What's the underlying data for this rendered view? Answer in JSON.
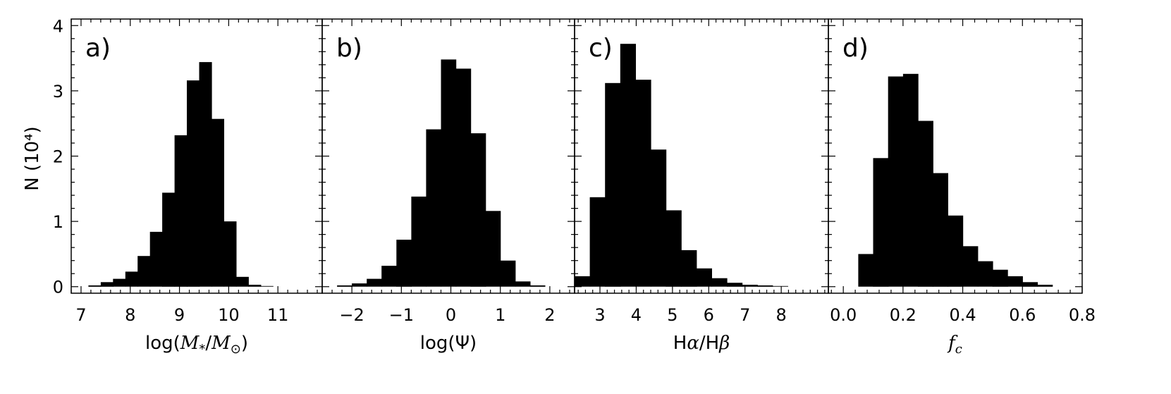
{
  "figure": {
    "ylabel": "N (10⁴)",
    "yticks": [
      "0",
      "1",
      "2",
      "3",
      "4"
    ]
  },
  "chart_data": [
    {
      "type": "bar",
      "panel_tag": "a)",
      "xlabel": "log(M*/M⊙)",
      "xlabel_parts": {
        "pre": "log(",
        "italic": "M",
        "sub1": "*",
        "mid": "/",
        "italic2": "M",
        "sub2": "⊙",
        "post": ")"
      },
      "xlim": [
        6.8,
        11.9
      ],
      "ylim": [
        -0.1,
        4.1
      ],
      "xticks": [
        7,
        8,
        9,
        10,
        11
      ],
      "xtick_labels": [
        "7",
        "8",
        "9",
        "10",
        "11"
      ],
      "bin_edges": [
        6.9,
        7.15,
        7.4,
        7.65,
        7.9,
        8.15,
        8.4,
        8.65,
        8.9,
        9.15,
        9.4,
        9.65,
        9.9,
        10.15,
        10.4,
        10.65,
        10.9,
        11.15,
        11.4,
        11.65
      ],
      "values": [
        0.0,
        0.02,
        0.07,
        0.12,
        0.23,
        0.47,
        0.84,
        1.44,
        2.32,
        3.16,
        3.44,
        2.57,
        1.0,
        0.15,
        0.03,
        0.01,
        0.0,
        0.0,
        0.0
      ]
    },
    {
      "type": "bar",
      "panel_tag": "b)",
      "xlabel": "log(Ψ)",
      "xlabel_parts": {
        "pre": "log(",
        "italic": "",
        "sub1": "",
        "mid": "Ψ",
        "italic2": "",
        "sub2": "",
        "post": ")"
      },
      "xlim": [
        -2.6,
        2.5
      ],
      "ylim": [
        -0.1,
        4.1
      ],
      "xticks": [
        -2,
        -1,
        0,
        1,
        2
      ],
      "xtick_labels": [
        "−2",
        "−1",
        "0",
        "1",
        "2"
      ],
      "bin_edges": [
        -2.6,
        -2.3,
        -2.0,
        -1.7,
        -1.4,
        -1.1,
        -0.8,
        -0.5,
        -0.2,
        0.1,
        0.4,
        0.7,
        1.0,
        1.3,
        1.6,
        1.9,
        2.2,
        2.5
      ],
      "values": [
        0.0,
        0.02,
        0.05,
        0.12,
        0.32,
        0.72,
        1.38,
        2.41,
        3.48,
        3.34,
        2.35,
        1.16,
        0.4,
        0.08,
        0.02,
        0.0,
        0.0
      ]
    },
    {
      "type": "bar",
      "panel_tag": "c)",
      "xlabel": "Hα/Hβ",
      "xlabel_parts": {
        "pre": "H",
        "italic": "α",
        "sub1": "",
        "mid": "/H",
        "italic2": "β",
        "sub2": "",
        "post": ""
      },
      "xlim": [
        2.3,
        9.3
      ],
      "ylim": [
        -0.1,
        4.1
      ],
      "xticks": [
        3,
        4,
        5,
        6,
        7,
        8
      ],
      "xtick_labels": [
        "3",
        "4",
        "5",
        "6",
        "7",
        "8"
      ],
      "bin_edges": [
        2.3,
        2.72,
        3.14,
        3.56,
        3.98,
        4.4,
        4.82,
        5.24,
        5.66,
        6.08,
        6.5,
        6.92,
        7.34,
        7.76,
        8.18,
        8.6,
        9.02,
        9.3
      ],
      "values": [
        0.16,
        1.37,
        3.12,
        3.72,
        3.17,
        2.1,
        1.17,
        0.56,
        0.28,
        0.13,
        0.06,
        0.03,
        0.02,
        0.01,
        0.0,
        0.0,
        0.0
      ]
    },
    {
      "type": "bar",
      "panel_tag": "d)",
      "xlabel": "fc",
      "xlabel_parts": {
        "pre": "",
        "italic": "f",
        "sub1": "c",
        "mid": "",
        "italic2": "",
        "sub2": "",
        "post": ""
      },
      "xlim": [
        -0.05,
        0.8
      ],
      "ylim": [
        -0.1,
        4.1
      ],
      "xticks": [
        0.0,
        0.2,
        0.4,
        0.6,
        0.8
      ],
      "xtick_labels": [
        "0.0",
        "0.2",
        "0.4",
        "0.6",
        "0.8"
      ],
      "bin_edges": [
        -0.05,
        0.0,
        0.05,
        0.1,
        0.15,
        0.2,
        0.25,
        0.3,
        0.35,
        0.4,
        0.45,
        0.5,
        0.55,
        0.6,
        0.65,
        0.7,
        0.75,
        0.8
      ],
      "values": [
        0.0,
        0.0,
        0.5,
        1.97,
        3.22,
        3.26,
        2.54,
        1.74,
        1.09,
        0.62,
        0.39,
        0.26,
        0.16,
        0.07,
        0.03,
        0.0,
        0.0
      ]
    }
  ]
}
